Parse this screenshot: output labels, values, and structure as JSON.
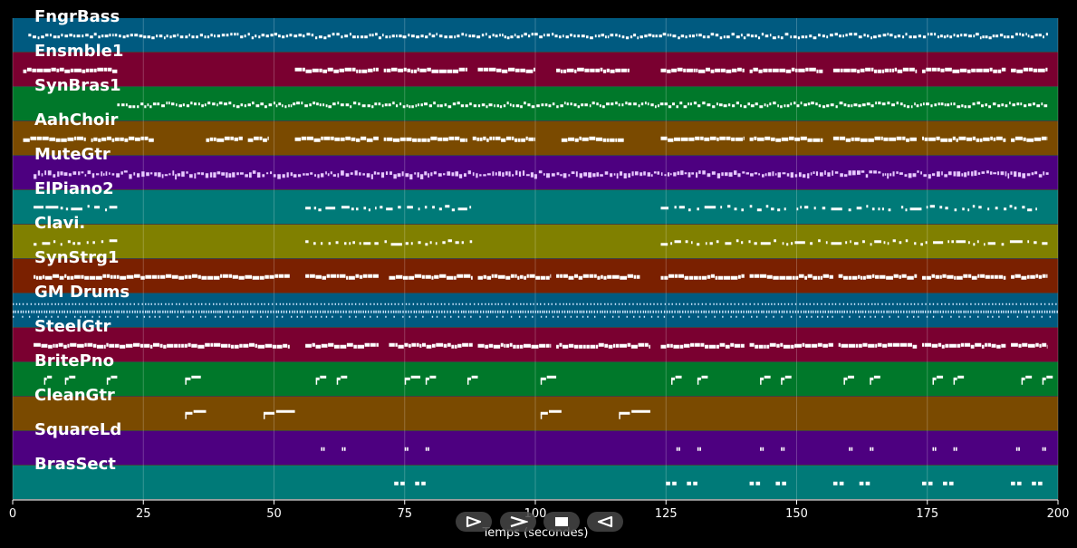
{
  "chart_data": {
    "type": "piano-roll",
    "xlabel": "Temps (secondes)",
    "xlim": [
      0,
      200
    ],
    "x_ticks": [
      0,
      25,
      50,
      75,
      100,
      125,
      150,
      175,
      200
    ],
    "grid": true,
    "tracks": [
      {
        "name": "FngrBass",
        "color": "#005a80",
        "style": "dense-line",
        "segments": [
          [
            3,
            198
          ]
        ]
      },
      {
        "name": "Ensmble1",
        "color": "#7a0030",
        "style": "sustained",
        "segments": [
          [
            2,
            20
          ],
          [
            54,
            70
          ],
          [
            71,
            87
          ],
          [
            89,
            100
          ],
          [
            104,
            118
          ],
          [
            124,
            140
          ],
          [
            141,
            155
          ],
          [
            157,
            173
          ],
          [
            174,
            190
          ],
          [
            191,
            198
          ]
        ]
      },
      {
        "name": "SynBras1",
        "color": "#00782a",
        "style": "dense-line",
        "segments": [
          [
            20,
            198
          ]
        ]
      },
      {
        "name": "AahChoir",
        "color": "#7a4a00",
        "style": "sustained",
        "segments": [
          [
            2,
            14
          ],
          [
            15,
            27
          ],
          [
            37,
            44
          ],
          [
            45,
            49
          ],
          [
            54,
            70
          ],
          [
            71,
            87
          ],
          [
            88,
            100
          ],
          [
            105,
            117
          ],
          [
            124,
            140
          ],
          [
            141,
            155
          ],
          [
            157,
            173
          ],
          [
            174,
            190
          ],
          [
            191,
            198
          ]
        ]
      },
      {
        "name": "MuteGtr",
        "color": "#4d0080",
        "style": "light-dense",
        "segments": [
          [
            4,
            198
          ]
        ]
      },
      {
        "name": "ElPiano2",
        "color": "#007a78",
        "style": "sparse",
        "segments": [
          [
            4,
            20
          ],
          [
            56,
            88
          ],
          [
            124,
            148
          ],
          [
            150,
            168
          ],
          [
            170,
            196
          ]
        ]
      },
      {
        "name": "Clavi.",
        "color": "#808000",
        "style": "sparse",
        "segments": [
          [
            4,
            20
          ],
          [
            56,
            88
          ],
          [
            124,
            198
          ]
        ]
      },
      {
        "name": "SynStrg1",
        "color": "#7a2000",
        "style": "sustained",
        "segments": [
          [
            4,
            53
          ],
          [
            56,
            70
          ],
          [
            72,
            88
          ],
          [
            89,
            103
          ],
          [
            104,
            120
          ],
          [
            124,
            140
          ],
          [
            141,
            157
          ],
          [
            158,
            173
          ],
          [
            174,
            190
          ],
          [
            191,
            198
          ]
        ]
      },
      {
        "name": "GM Drums",
        "color": "#005a80",
        "style": "drums",
        "segments": [
          [
            0,
            200
          ]
        ]
      },
      {
        "name": "SteelGtr",
        "color": "#7a0030",
        "style": "sustained",
        "segments": [
          [
            4,
            53
          ],
          [
            56,
            70
          ],
          [
            72,
            88
          ],
          [
            89,
            103
          ],
          [
            104,
            122
          ],
          [
            124,
            140
          ],
          [
            141,
            157
          ],
          [
            158,
            173
          ],
          [
            174,
            190
          ],
          [
            191,
            198
          ]
        ]
      },
      {
        "name": "BritePno",
        "color": "#00782a",
        "style": "phrases",
        "segments": [
          [
            6,
            7.5
          ],
          [
            10,
            12
          ],
          [
            18,
            20
          ],
          [
            33,
            36
          ],
          [
            58,
            60
          ],
          [
            62,
            64
          ],
          [
            75,
            78
          ],
          [
            79,
            81
          ],
          [
            87,
            89
          ],
          [
            101,
            104
          ],
          [
            126,
            128
          ],
          [
            131,
            133
          ],
          [
            143,
            145
          ],
          [
            147,
            149
          ],
          [
            159,
            161
          ],
          [
            164,
            166
          ],
          [
            176,
            178
          ],
          [
            180,
            182
          ],
          [
            193,
            195
          ],
          [
            197,
            199
          ]
        ]
      },
      {
        "name": "CleanGtr",
        "color": "#7a4a00",
        "style": "phrases",
        "segments": [
          [
            33,
            37
          ],
          [
            48,
            54
          ],
          [
            101,
            105
          ],
          [
            116,
            122
          ]
        ]
      },
      {
        "name": "SquareLd",
        "color": "#4d0080",
        "style": "tiny",
        "segments": [
          [
            59,
            59.7
          ],
          [
            63,
            63.7
          ],
          [
            75,
            75.7
          ],
          [
            79,
            79.7
          ],
          [
            127,
            127.7
          ],
          [
            131,
            131.7
          ],
          [
            143,
            143.7
          ],
          [
            147,
            147.7
          ],
          [
            160,
            160.7
          ],
          [
            164,
            164.7
          ],
          [
            176,
            176.7
          ],
          [
            180,
            180.7
          ],
          [
            192,
            192.7
          ],
          [
            197,
            197.7
          ]
        ]
      },
      {
        "name": "BrasSect",
        "color": "#007a78",
        "style": "tiny",
        "segments": [
          [
            73,
            75
          ],
          [
            77,
            79
          ],
          [
            125,
            127
          ],
          [
            129,
            131
          ],
          [
            141,
            143
          ],
          [
            146,
            148
          ],
          [
            157,
            159
          ],
          [
            162,
            164
          ],
          [
            174,
            176
          ],
          [
            178,
            180
          ],
          [
            191,
            193
          ],
          [
            195,
            197
          ]
        ]
      }
    ]
  },
  "controls": {
    "play_icon": "play-outline-icon",
    "forward_icon": "chevron-right-icon",
    "stop_icon": "stop-square-icon",
    "back_icon": "triangle-left-outline-icon"
  }
}
